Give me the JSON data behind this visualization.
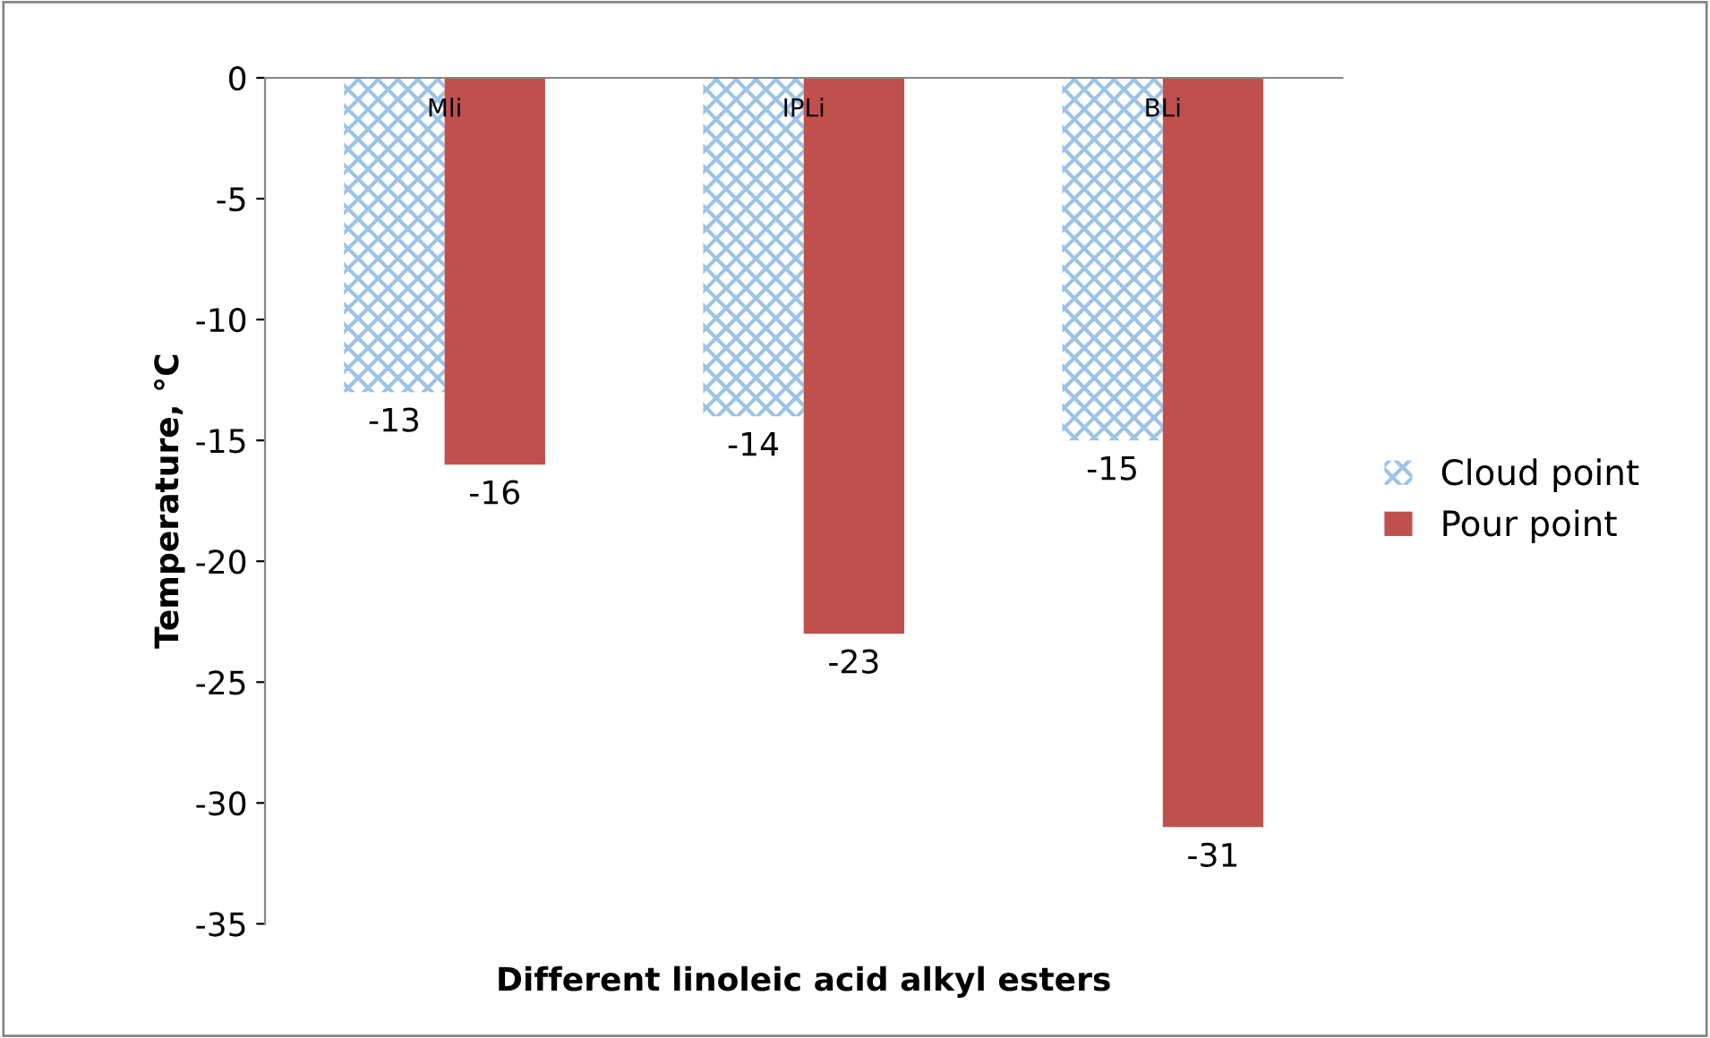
{
  "chart_data": {
    "type": "bar",
    "xlabel": "Different linoleic acid alkyl esters",
    "ylabel": "Temperature, °C",
    "categories": [
      "Mli",
      "IPLi",
      "BLi"
    ],
    "series": [
      {
        "name": "Cloud point",
        "color": "#9dc3e6",
        "values": [
          -13,
          -14,
          -15
        ]
      },
      {
        "name": "Pour point",
        "color": "#c0504d",
        "values": [
          -16,
          -23,
          -31
        ]
      }
    ],
    "ylim": [
      -35,
      0
    ],
    "yticks": [
      -35,
      -30,
      -25,
      -20,
      -15,
      -10,
      -5,
      0
    ],
    "data_labels": true,
    "legend": "right",
    "grid": false
  }
}
